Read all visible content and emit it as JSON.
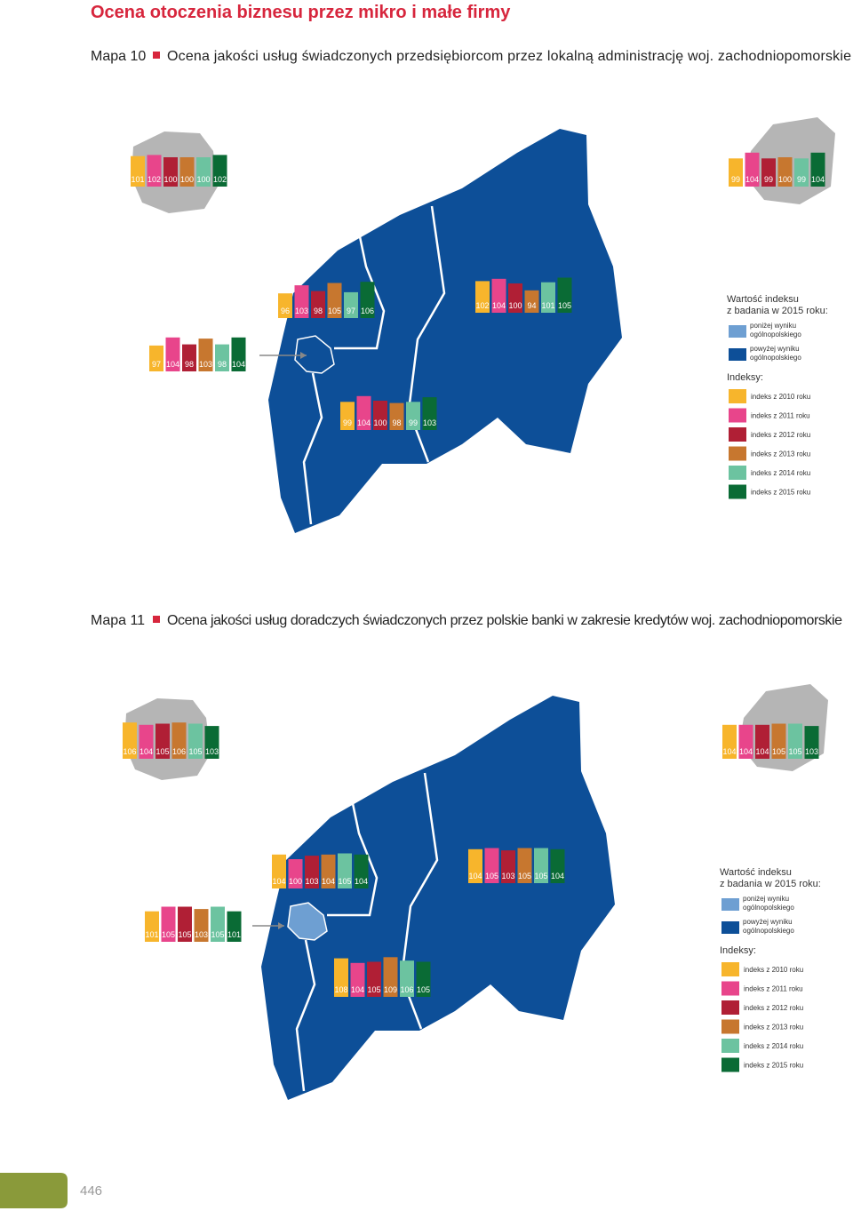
{
  "header": {
    "title": "Ocena otoczenia biznesu przez mikro i małe firmy"
  },
  "index_colors": [
    "#f7b52c",
    "#e8458b",
    "#b01f35",
    "#c7772f",
    "#6cc3a0",
    "#0a6b35"
  ],
  "region_colors": {
    "below": "#6e9fd2",
    "above": "#0d4f98"
  },
  "maps": [
    {
      "label": "Mapa 10",
      "title": "Ocena jakości usług świadczonych przedsiębiorcom przez lokalną administrację woj. zachodniopomorskie",
      "city_below": false,
      "groups": [
        {
          "values": [
            101,
            102,
            100,
            100,
            100,
            102
          ]
        },
        {
          "values": [
            99,
            104,
            99,
            100,
            99,
            104
          ]
        },
        {
          "values": [
            96,
            103,
            98,
            105,
            97,
            106
          ]
        },
        {
          "values": [
            102,
            104,
            100,
            94,
            101,
            105
          ]
        },
        {
          "values": [
            97,
            104,
            98,
            103,
            98,
            104
          ]
        },
        {
          "values": [
            99,
            104,
            100,
            98,
            99,
            103
          ]
        }
      ],
      "legend": {
        "heading": [
          "Wartość indeksu",
          "z badania w 2015 roku:"
        ],
        "below": [
          "poniżej wyniku",
          "ogólnopolskiego"
        ],
        "above": [
          "powyżej wyniku",
          "ogólnopolskiego"
        ],
        "indices_title": "Indeksy:",
        "indices": [
          "indeks z 2010 roku",
          "indeks z 2011 roku",
          "indeks z 2012 roku",
          "indeks z 2013 roku",
          "indeks z 2014 roku",
          "indeks z 2015 roku"
        ]
      }
    },
    {
      "label": "Mapa 11",
      "title": "Ocena jakości usług doradczych świadczonych przez polskie banki w zakresie kredytów woj. zachodniopomorskie",
      "city_below": true,
      "groups": [
        {
          "values": [
            106,
            104,
            105,
            106,
            105,
            103
          ]
        },
        {
          "values": [
            104,
            104,
            104,
            105,
            105,
            103
          ]
        },
        {
          "values": [
            104,
            100,
            103,
            104,
            105,
            104
          ]
        },
        {
          "values": [
            104,
            105,
            103,
            105,
            105,
            104
          ]
        },
        {
          "values": [
            101,
            105,
            105,
            103,
            105,
            101
          ]
        },
        {
          "values": [
            108,
            104,
            105,
            109,
            106,
            105
          ]
        }
      ],
      "legend": {
        "heading": [
          "Wartość indeksu",
          "z badania w 2015 roku:"
        ],
        "below": [
          "poniżej wyniku",
          "ogólnopolskiego"
        ],
        "above": [
          "powyżej wyniku",
          "ogólnopolskiego"
        ],
        "indices_title": "Indeksy:",
        "indices": [
          "indeks z 2010 roku",
          "indeks z 2011 roku",
          "indeks z 2012 roku",
          "indeks z 2013 roku",
          "indeks z 2014 roku",
          "indeks z 2015 roku"
        ]
      }
    }
  ],
  "page_number": 446
}
